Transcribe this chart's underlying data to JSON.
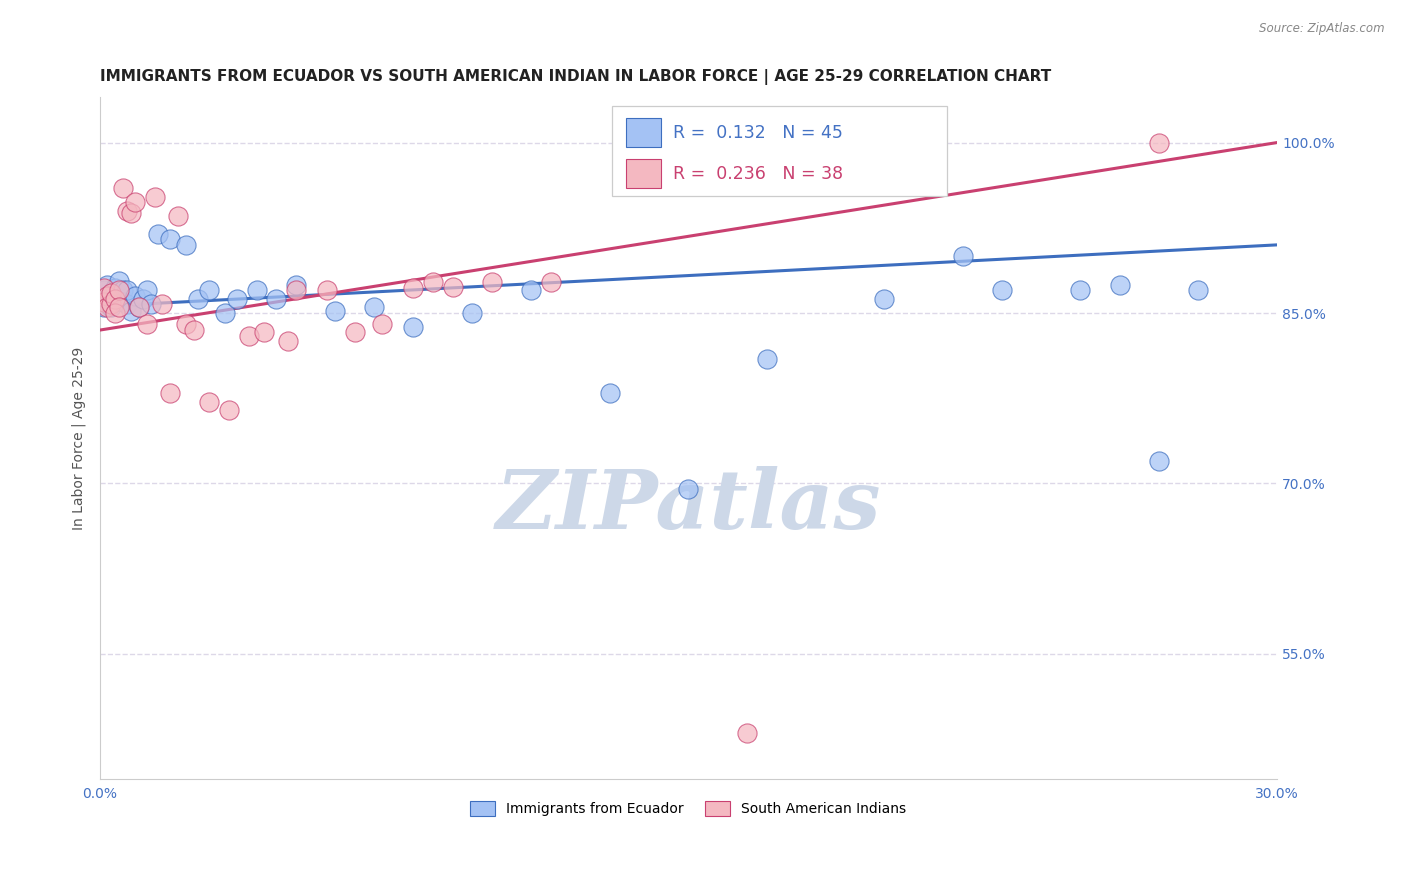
{
  "title": "IMMIGRANTS FROM ECUADOR VS SOUTH AMERICAN INDIAN IN LABOR FORCE | AGE 25-29 CORRELATION CHART",
  "source_text": "Source: ZipAtlas.com",
  "ylabel": "In Labor Force | Age 25-29",
  "xlim": [
    0.0,
    0.3
  ],
  "ylim": [
    0.44,
    1.04
  ],
  "xticks": [
    0.0,
    0.05,
    0.1,
    0.15,
    0.2,
    0.25,
    0.3
  ],
  "xticklabels": [
    "0.0%",
    "",
    "",
    "",
    "",
    "",
    "30.0%"
  ],
  "yticks_right": [
    0.55,
    0.7,
    0.85,
    1.0
  ],
  "ytick_right_labels": [
    "55.0%",
    "70.0%",
    "85.0%",
    "100.0%"
  ],
  "blue_fill": "#a4c2f4",
  "blue_edge": "#3d6ebf",
  "pink_fill": "#f4b8c1",
  "pink_edge": "#c94070",
  "blue_line_color": "#3d6ebf",
  "pink_line_color": "#c94070",
  "legend_R1": "0.132",
  "legend_N1": "45",
  "legend_R2": "0.236",
  "legend_N2": "38",
  "legend_label1": "Immigrants from Ecuador",
  "legend_label2": "South American Indians",
  "watermark": "ZIPatlas",
  "watermark_color": "#cdd8e8",
  "title_color": "#222222",
  "source_color": "#888888",
  "background_color": "#ffffff",
  "grid_color": "#ddd8e8",
  "axis_tick_color": "#4472c4",
  "blue_x": [
    0.001,
    0.001,
    0.002,
    0.002,
    0.003,
    0.003,
    0.004,
    0.004,
    0.005,
    0.005,
    0.006,
    0.006,
    0.007,
    0.007,
    0.008,
    0.009,
    0.01,
    0.011,
    0.012,
    0.013,
    0.015,
    0.018,
    0.022,
    0.025,
    0.028,
    0.032,
    0.035,
    0.04,
    0.045,
    0.05,
    0.06,
    0.07,
    0.08,
    0.095,
    0.11,
    0.13,
    0.15,
    0.17,
    0.2,
    0.22,
    0.23,
    0.25,
    0.26,
    0.27,
    0.28
  ],
  "blue_y": [
    0.87,
    0.855,
    0.875,
    0.862,
    0.868,
    0.855,
    0.872,
    0.86,
    0.865,
    0.878,
    0.87,
    0.86,
    0.858,
    0.87,
    0.852,
    0.865,
    0.855,
    0.862,
    0.87,
    0.858,
    0.92,
    0.915,
    0.91,
    0.862,
    0.87,
    0.85,
    0.862,
    0.87,
    0.862,
    0.875,
    0.852,
    0.855,
    0.838,
    0.85,
    0.87,
    0.78,
    0.695,
    0.81,
    0.862,
    0.9,
    0.87,
    0.87,
    0.875,
    0.72,
    0.87
  ],
  "pink_x": [
    0.001,
    0.001,
    0.002,
    0.002,
    0.003,
    0.003,
    0.004,
    0.004,
    0.005,
    0.005,
    0.006,
    0.007,
    0.008,
    0.009,
    0.01,
    0.012,
    0.014,
    0.016,
    0.018,
    0.02,
    0.022,
    0.024,
    0.028,
    0.033,
    0.038,
    0.042,
    0.05,
    0.058,
    0.065,
    0.072,
    0.08,
    0.085,
    0.09,
    0.1,
    0.115,
    0.048,
    0.27,
    0.165
  ],
  "pink_y": [
    0.872,
    0.86,
    0.865,
    0.855,
    0.858,
    0.868,
    0.862,
    0.85,
    0.87,
    0.855,
    0.96,
    0.94,
    0.938,
    0.948,
    0.855,
    0.84,
    0.952,
    0.858,
    0.78,
    0.935,
    0.84,
    0.835,
    0.772,
    0.765,
    0.83,
    0.833,
    0.87,
    0.87,
    0.833,
    0.84,
    0.872,
    0.877,
    0.873,
    0.877,
    0.877,
    0.825,
    1.0,
    0.48
  ]
}
